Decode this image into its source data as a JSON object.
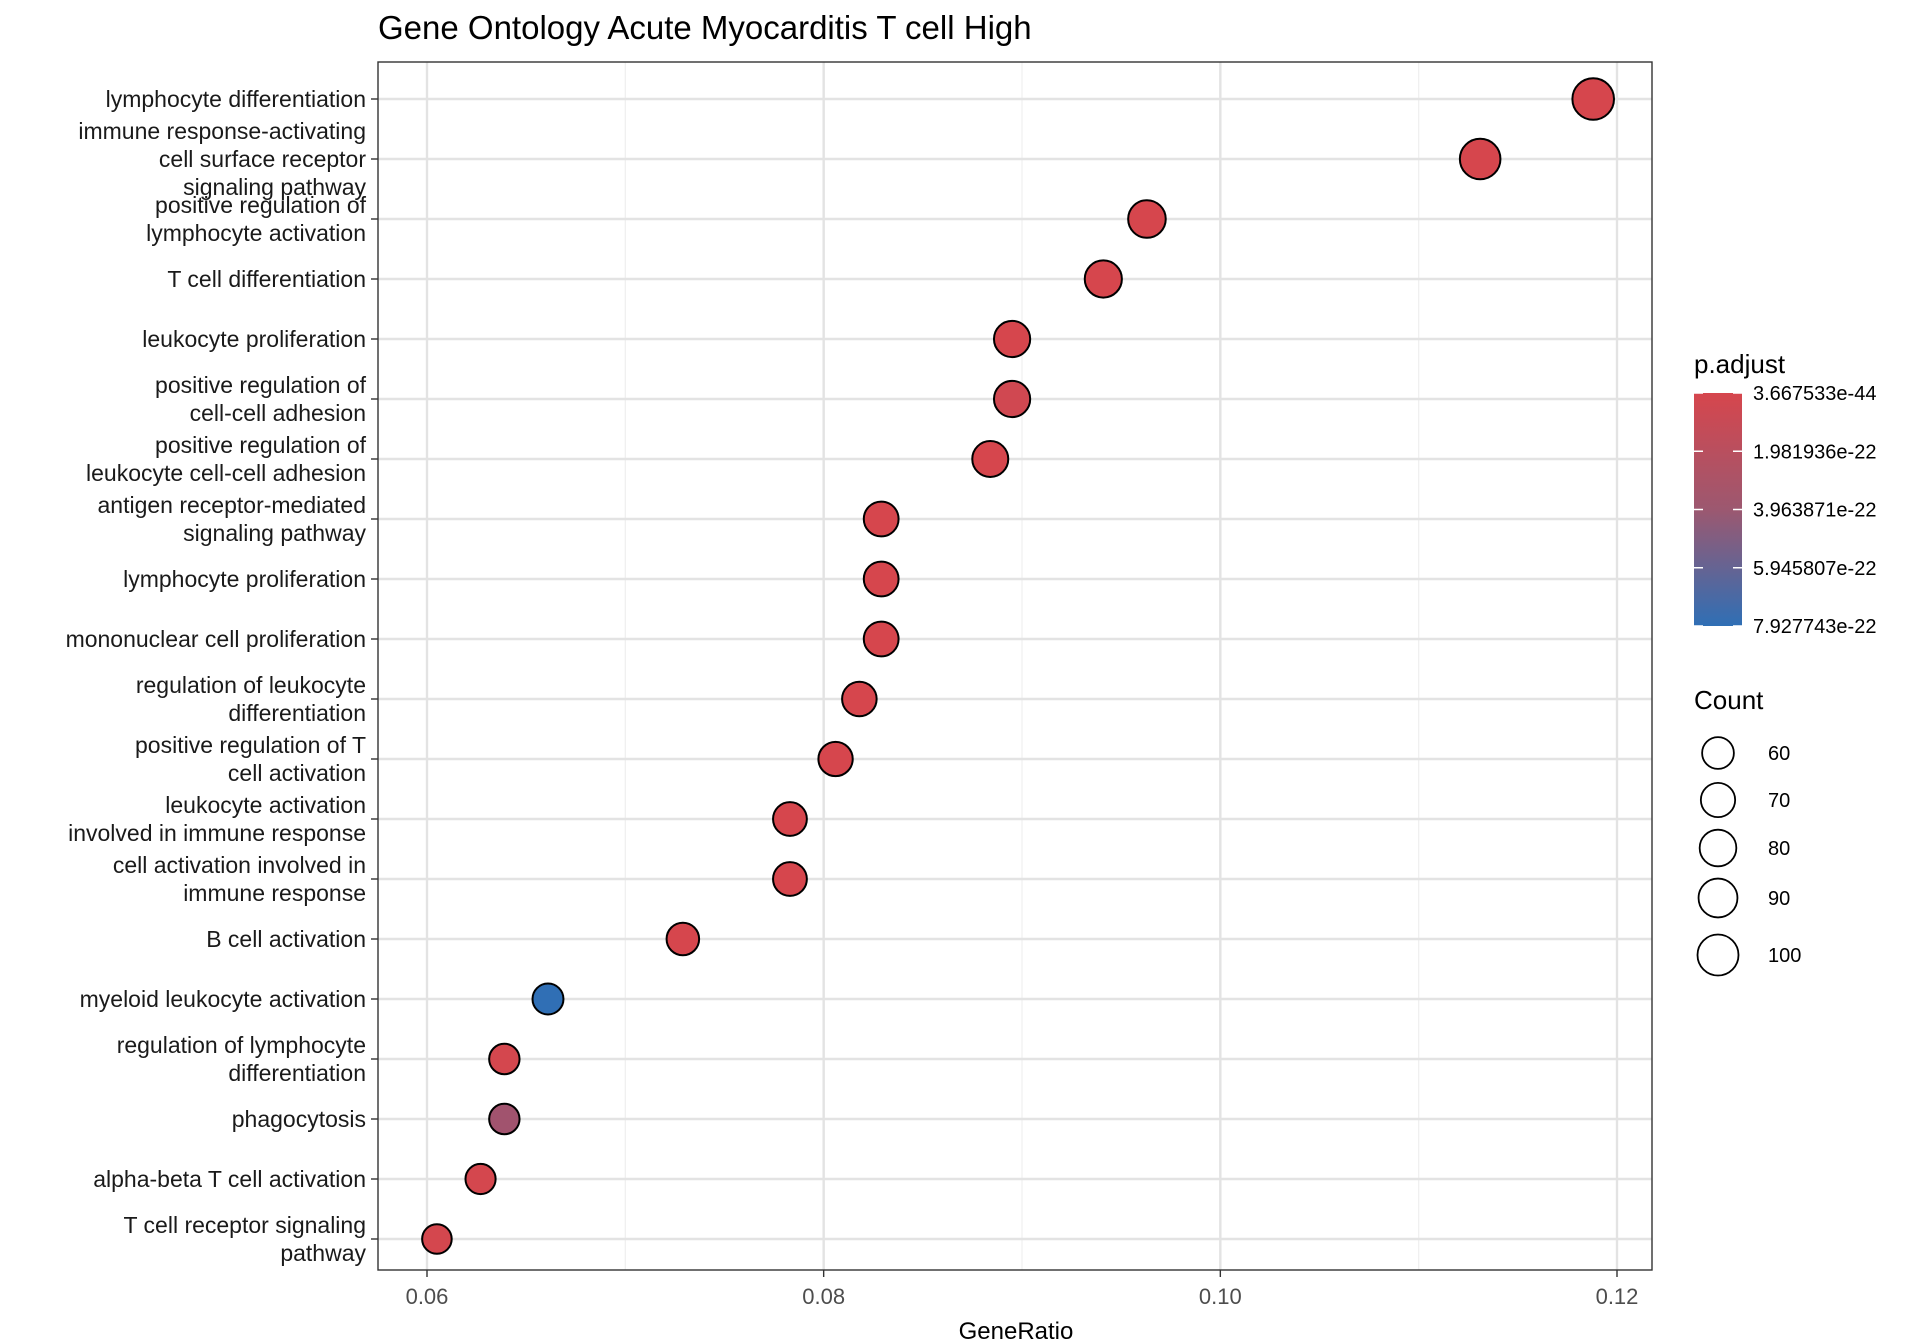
{
  "chart_data": {
    "type": "scatter",
    "title": "Gene Ontology Acute Myocarditis T cell High",
    "xlabel": "GeneRatio",
    "ylabel": "",
    "xlim": [
      0.058,
      0.122
    ],
    "x_ticks": [
      "0.06",
      "0.08",
      "0.10",
      "0.12"
    ],
    "x_tick_values": [
      0.06,
      0.08,
      0.1,
      0.12
    ],
    "grid": true,
    "legend_position": "right",
    "color_legend": {
      "title": "p.adjust",
      "labels": [
        "3.667533e-44",
        "1.981936e-22",
        "3.963871e-22",
        "5.945807e-22",
        "7.927743e-22"
      ],
      "low_color": "#d6464d",
      "high_color": "#2f6fb5"
    },
    "size_legend": {
      "title": "Count",
      "labels": [
        "60",
        "70",
        "80",
        "90",
        "100"
      ],
      "values": [
        60,
        70,
        80,
        90,
        100
      ]
    },
    "points": [
      {
        "term": [
          "lymphocyte differentiation"
        ],
        "gene_ratio": 0.1188,
        "count": 103,
        "p_adjust": 3.7e-44
      },
      {
        "term": [
          "immune response-activating",
          "cell surface receptor",
          "signaling pathway"
        ],
        "gene_ratio": 0.1131,
        "count": 98,
        "p_adjust": 1e-40
      },
      {
        "term": [
          "positive regulation of",
          "lymphocyte activation"
        ],
        "gene_ratio": 0.0963,
        "count": 84,
        "p_adjust": 1e-38
      },
      {
        "term": [
          "T cell differentiation"
        ],
        "gene_ratio": 0.0941,
        "count": 82,
        "p_adjust": 1e-37
      },
      {
        "term": [
          "leukocyte proliferation"
        ],
        "gene_ratio": 0.0895,
        "count": 78,
        "p_adjust": 1e-35
      },
      {
        "term": [
          "positive regulation of",
          "cell-cell adhesion"
        ],
        "gene_ratio": 0.0895,
        "count": 78,
        "p_adjust": 3e-23
      },
      {
        "term": [
          "positive regulation of",
          "leukocyte cell-cell adhesion"
        ],
        "gene_ratio": 0.0884,
        "count": 77,
        "p_adjust": 1e-30
      },
      {
        "term": [
          "antigen receptor-mediated",
          "signaling pathway"
        ],
        "gene_ratio": 0.0829,
        "count": 72,
        "p_adjust": 1e-30
      },
      {
        "term": [
          "lymphocyte proliferation"
        ],
        "gene_ratio": 0.0829,
        "count": 72,
        "p_adjust": 1e-30
      },
      {
        "term": [
          "mononuclear cell proliferation"
        ],
        "gene_ratio": 0.0829,
        "count": 72,
        "p_adjust": 1e-30
      },
      {
        "term": [
          "regulation of leukocyte",
          "differentiation"
        ],
        "gene_ratio": 0.0818,
        "count": 71,
        "p_adjust": 1e-28
      },
      {
        "term": [
          "positive regulation of T",
          "cell activation"
        ],
        "gene_ratio": 0.0806,
        "count": 70,
        "p_adjust": 1e-28
      },
      {
        "term": [
          "leukocyte activation",
          "involved in immune response"
        ],
        "gene_ratio": 0.0783,
        "count": 68,
        "p_adjust": 1e-26
      },
      {
        "term": [
          "cell activation involved in",
          "immune response"
        ],
        "gene_ratio": 0.0783,
        "count": 68,
        "p_adjust": 1e-26
      },
      {
        "term": [
          "B cell activation"
        ],
        "gene_ratio": 0.0729,
        "count": 63,
        "p_adjust": 1e-24
      },
      {
        "term": [
          "myeloid leukocyte activation"
        ],
        "gene_ratio": 0.0661,
        "count": 57,
        "p_adjust": 7.9e-22
      },
      {
        "term": [
          "regulation of lymphocyte",
          "differentiation"
        ],
        "gene_ratio": 0.0639,
        "count": 55,
        "p_adjust": 1e-23
      },
      {
        "term": [
          "phagocytosis"
        ],
        "gene_ratio": 0.0639,
        "count": 55,
        "p_adjust": 2.5e-22
      },
      {
        "term": [
          "alpha-beta T cell activation"
        ],
        "gene_ratio": 0.0627,
        "count": 54,
        "p_adjust": 1e-23
      },
      {
        "term": [
          "T cell receptor signaling",
          "pathway"
        ],
        "gene_ratio": 0.0605,
        "count": 52,
        "p_adjust": 1e-23
      }
    ]
  }
}
